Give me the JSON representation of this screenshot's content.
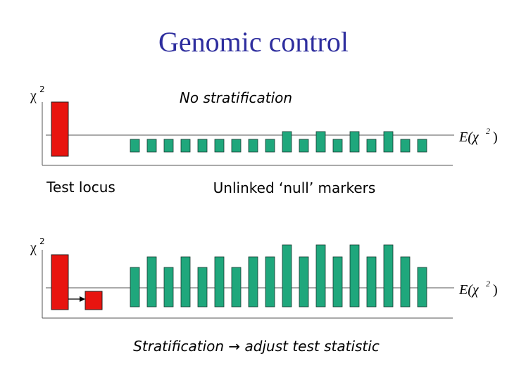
{
  "title": "Genomic control",
  "top_panel": {
    "axis_label": {
      "symbol": "χ",
      "exponent": "2"
    },
    "heading": "No stratification",
    "expectation": {
      "symbol": "E(χ",
      "exponent": "2",
      "close": ")"
    }
  },
  "captions": {
    "test_locus": "Test locus",
    "null_markers": "Unlinked ‘null’ markers"
  },
  "bottom_panel": {
    "axis_label": {
      "symbol": "χ",
      "exponent": "2"
    },
    "expectation": {
      "symbol": "E(χ",
      "exponent": "2",
      "close": ")"
    },
    "caption": "Stratification → adjust test statistic"
  }
}
